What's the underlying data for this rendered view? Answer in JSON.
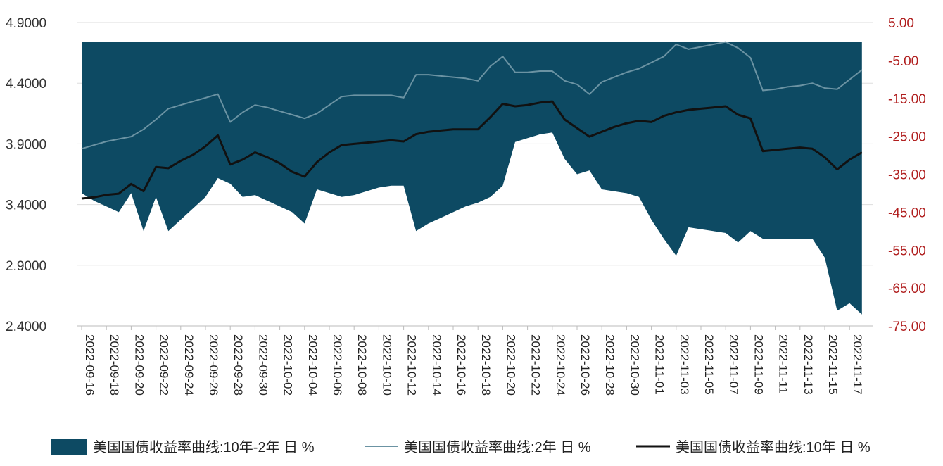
{
  "chart_data": {
    "type": "area",
    "left_axis": {
      "ylim": [
        2.4,
        4.9
      ],
      "ticks": [
        "4.9000",
        "4.4000",
        "3.9000",
        "3.4000",
        "2.9000",
        "2.4000"
      ]
    },
    "right_axis": {
      "ylim": [
        -75,
        5
      ],
      "ticks": [
        "5.00",
        "-5.00",
        "-15.00",
        "-25.00",
        "-35.00",
        "-45.00",
        "-55.00",
        "-65.00",
        "-75.00"
      ],
      "tick_color": "#b01e1e"
    },
    "x_ticks": [
      "2022-09-16",
      "2022-09-18",
      "2022-09-20",
      "2022-09-22",
      "2022-09-24",
      "2022-09-26",
      "2022-09-28",
      "2022-09-30",
      "2022-10-02",
      "2022-10-04",
      "2022-10-06",
      "2022-10-08",
      "2022-10-10",
      "2022-10-12",
      "2022-10-14",
      "2022-10-16",
      "2022-10-18",
      "2022-10-20",
      "2022-10-22",
      "2022-10-24",
      "2022-10-26",
      "2022-10-28",
      "2022-10-30",
      "2022-11-01",
      "2022-11-03",
      "2022-11-05",
      "2022-11-07",
      "2022-11-09",
      "2022-11-11",
      "2022-11-13",
      "2022-11-15",
      "2022-11-17"
    ],
    "x_start": "2022-09-16",
    "series": [
      {
        "name": "美国国债收益率曲线:10年-2年 日 %",
        "kind": "area",
        "axis": "right",
        "color": "#0d4a63",
        "top": 0,
        "points": [
          [
            "2022-09-16",
            -40.0
          ],
          [
            "2022-09-17",
            -42.0
          ],
          [
            "2022-09-18",
            -43.5
          ],
          [
            "2022-09-19",
            -45.0
          ],
          [
            "2022-09-20",
            -40.0
          ],
          [
            "2022-09-21",
            -50.0
          ],
          [
            "2022-09-22",
            -41.0
          ],
          [
            "2022-09-23",
            -50.0
          ],
          [
            "2022-09-24",
            -47.0
          ],
          [
            "2022-09-25",
            -44.0
          ],
          [
            "2022-09-26",
            -41.0
          ],
          [
            "2022-09-27",
            -36.0
          ],
          [
            "2022-09-28",
            -37.5
          ],
          [
            "2022-09-29",
            -41.0
          ],
          [
            "2022-09-30",
            -40.5
          ],
          [
            "2022-10-01",
            -42.0
          ],
          [
            "2022-10-02",
            -43.5
          ],
          [
            "2022-10-03",
            -45.0
          ],
          [
            "2022-10-04",
            -48.0
          ],
          [
            "2022-10-05",
            -39.0
          ],
          [
            "2022-10-06",
            -40.0
          ],
          [
            "2022-10-07",
            -41.0
          ],
          [
            "2022-10-08",
            -40.5
          ],
          [
            "2022-10-09",
            -39.5
          ],
          [
            "2022-10-10",
            -38.5
          ],
          [
            "2022-10-11",
            -38.0
          ],
          [
            "2022-10-12",
            -38.0
          ],
          [
            "2022-10-13",
            -50.0
          ],
          [
            "2022-10-14",
            -48.0
          ],
          [
            "2022-10-15",
            -46.5
          ],
          [
            "2022-10-16",
            -45.0
          ],
          [
            "2022-10-17",
            -43.5
          ],
          [
            "2022-10-18",
            -42.5
          ],
          [
            "2022-10-19",
            -41.0
          ],
          [
            "2022-10-20",
            -38.0
          ],
          [
            "2022-10-21",
            -26.5
          ],
          [
            "2022-10-22",
            -25.5
          ],
          [
            "2022-10-23",
            -24.5
          ],
          [
            "2022-10-24",
            -24.0
          ],
          [
            "2022-10-25",
            -31.0
          ],
          [
            "2022-10-26",
            -35.0
          ],
          [
            "2022-10-27",
            -34.0
          ],
          [
            "2022-10-28",
            -39.0
          ],
          [
            "2022-10-29",
            -39.5
          ],
          [
            "2022-10-30",
            -40.0
          ],
          [
            "2022-10-31",
            -41.0
          ],
          [
            "2022-11-01",
            -47.0
          ],
          [
            "2022-11-02",
            -52.0
          ],
          [
            "2022-11-03",
            -56.5
          ],
          [
            "2022-11-04",
            -49.0
          ],
          [
            "2022-11-05",
            -49.5
          ],
          [
            "2022-11-06",
            -50.0
          ],
          [
            "2022-11-07",
            -50.5
          ],
          [
            "2022-11-08",
            -53.0
          ],
          [
            "2022-11-09",
            -50.0
          ],
          [
            "2022-11-10",
            -52.0
          ],
          [
            "2022-11-11",
            -52.0
          ],
          [
            "2022-11-12",
            -52.0
          ],
          [
            "2022-11-13",
            -52.0
          ],
          [
            "2022-11-14",
            -52.0
          ],
          [
            "2022-11-15",
            -57.0
          ],
          [
            "2022-11-16",
            -71.0
          ],
          [
            "2022-11-17",
            -69.0
          ],
          [
            "2022-11-18",
            -72.0
          ]
        ]
      },
      {
        "name": "美国国债收益率曲线:2年 日 %",
        "kind": "line",
        "axis": "left",
        "color": "#6b93a3",
        "points": [
          [
            "2022-09-16",
            3.86
          ],
          [
            "2022-09-17",
            3.89
          ],
          [
            "2022-09-18",
            3.92
          ],
          [
            "2022-09-19",
            3.94
          ],
          [
            "2022-09-20",
            3.96
          ],
          [
            "2022-09-21",
            4.02
          ],
          [
            "2022-09-22",
            4.1
          ],
          [
            "2022-09-23",
            4.19
          ],
          [
            "2022-09-24",
            4.22
          ],
          [
            "2022-09-25",
            4.25
          ],
          [
            "2022-09-26",
            4.28
          ],
          [
            "2022-09-27",
            4.31
          ],
          [
            "2022-09-28",
            4.08
          ],
          [
            "2022-09-29",
            4.16
          ],
          [
            "2022-09-30",
            4.22
          ],
          [
            "2022-10-01",
            4.2
          ],
          [
            "2022-10-02",
            4.17
          ],
          [
            "2022-10-03",
            4.14
          ],
          [
            "2022-10-04",
            4.11
          ],
          [
            "2022-10-05",
            4.15
          ],
          [
            "2022-10-06",
            4.22
          ],
          [
            "2022-10-07",
            4.29
          ],
          [
            "2022-10-08",
            4.3
          ],
          [
            "2022-10-09",
            4.3
          ],
          [
            "2022-10-10",
            4.3
          ],
          [
            "2022-10-11",
            4.3
          ],
          [
            "2022-10-12",
            4.28
          ],
          [
            "2022-10-13",
            4.47
          ],
          [
            "2022-10-14",
            4.47
          ],
          [
            "2022-10-15",
            4.46
          ],
          [
            "2022-10-16",
            4.45
          ],
          [
            "2022-10-17",
            4.44
          ],
          [
            "2022-10-18",
            4.42
          ],
          [
            "2022-10-19",
            4.54
          ],
          [
            "2022-10-20",
            4.62
          ],
          [
            "2022-10-21",
            4.49
          ],
          [
            "2022-10-22",
            4.49
          ],
          [
            "2022-10-23",
            4.5
          ],
          [
            "2022-10-24",
            4.5
          ],
          [
            "2022-10-25",
            4.42
          ],
          [
            "2022-10-26",
            4.39
          ],
          [
            "2022-10-27",
            4.31
          ],
          [
            "2022-10-28",
            4.41
          ],
          [
            "2022-10-29",
            4.45
          ],
          [
            "2022-10-30",
            4.49
          ],
          [
            "2022-10-31",
            4.52
          ],
          [
            "2022-11-01",
            4.57
          ],
          [
            "2022-11-02",
            4.62
          ],
          [
            "2022-11-03",
            4.72
          ],
          [
            "2022-11-04",
            4.68
          ],
          [
            "2022-11-05",
            4.7
          ],
          [
            "2022-11-06",
            4.72
          ],
          [
            "2022-11-07",
            4.74
          ],
          [
            "2022-11-08",
            4.69
          ],
          [
            "2022-11-09",
            4.61
          ],
          [
            "2022-11-10",
            4.34
          ],
          [
            "2022-11-11",
            4.35
          ],
          [
            "2022-11-12",
            4.37
          ],
          [
            "2022-11-13",
            4.38
          ],
          [
            "2022-11-14",
            4.4
          ],
          [
            "2022-11-15",
            4.36
          ],
          [
            "2022-11-16",
            4.35
          ],
          [
            "2022-11-17",
            4.43
          ],
          [
            "2022-11-18",
            4.51
          ]
        ]
      },
      {
        "name": "美国国债收益率曲线:10年 日 %",
        "kind": "line",
        "axis": "left",
        "color": "#111111",
        "points": [
          [
            "2022-09-16",
            3.45
          ],
          [
            "2022-09-17",
            3.46
          ],
          [
            "2022-09-18",
            3.48
          ],
          [
            "2022-09-19",
            3.49
          ],
          [
            "2022-09-20",
            3.57
          ],
          [
            "2022-09-21",
            3.51
          ],
          [
            "2022-09-22",
            3.71
          ],
          [
            "2022-09-23",
            3.7
          ],
          [
            "2022-09-24",
            3.76
          ],
          [
            "2022-09-25",
            3.81
          ],
          [
            "2022-09-26",
            3.88
          ],
          [
            "2022-09-27",
            3.97
          ],
          [
            "2022-09-28",
            3.73
          ],
          [
            "2022-09-29",
            3.77
          ],
          [
            "2022-09-30",
            3.83
          ],
          [
            "2022-10-01",
            3.79
          ],
          [
            "2022-10-02",
            3.74
          ],
          [
            "2022-10-03",
            3.67
          ],
          [
            "2022-10-04",
            3.63
          ],
          [
            "2022-10-05",
            3.75
          ],
          [
            "2022-10-06",
            3.83
          ],
          [
            "2022-10-07",
            3.89
          ],
          [
            "2022-10-08",
            3.9
          ],
          [
            "2022-10-09",
            3.91
          ],
          [
            "2022-10-10",
            3.92
          ],
          [
            "2022-10-11",
            3.93
          ],
          [
            "2022-10-12",
            3.92
          ],
          [
            "2022-10-13",
            3.98
          ],
          [
            "2022-10-14",
            4.0
          ],
          [
            "2022-10-15",
            4.01
          ],
          [
            "2022-10-16",
            4.02
          ],
          [
            "2022-10-17",
            4.02
          ],
          [
            "2022-10-18",
            4.02
          ],
          [
            "2022-10-19",
            4.12
          ],
          [
            "2022-10-20",
            4.23
          ],
          [
            "2022-10-21",
            4.21
          ],
          [
            "2022-10-22",
            4.22
          ],
          [
            "2022-10-23",
            4.24
          ],
          [
            "2022-10-24",
            4.25
          ],
          [
            "2022-10-25",
            4.1
          ],
          [
            "2022-10-26",
            4.03
          ],
          [
            "2022-10-27",
            3.96
          ],
          [
            "2022-10-28",
            4.0
          ],
          [
            "2022-10-29",
            4.04
          ],
          [
            "2022-10-30",
            4.07
          ],
          [
            "2022-10-31",
            4.09
          ],
          [
            "2022-11-01",
            4.08
          ],
          [
            "2022-11-02",
            4.13
          ],
          [
            "2022-11-03",
            4.16
          ],
          [
            "2022-11-04",
            4.18
          ],
          [
            "2022-11-05",
            4.19
          ],
          [
            "2022-11-06",
            4.2
          ],
          [
            "2022-11-07",
            4.21
          ],
          [
            "2022-11-08",
            4.14
          ],
          [
            "2022-11-09",
            4.11
          ],
          [
            "2022-11-10",
            3.84
          ],
          [
            "2022-11-11",
            3.85
          ],
          [
            "2022-11-12",
            3.86
          ],
          [
            "2022-11-13",
            3.87
          ],
          [
            "2022-11-14",
            3.86
          ],
          [
            "2022-11-15",
            3.79
          ],
          [
            "2022-11-16",
            3.69
          ],
          [
            "2022-11-17",
            3.77
          ],
          [
            "2022-11-18",
            3.83
          ]
        ]
      }
    ],
    "legend": {
      "placement": "bottom",
      "labels": [
        "美国国债收益率曲线:10年-2年 日 %",
        "美国国债收益率曲线:2年 日 %",
        "美国国债收益率曲线:10年 日 %"
      ]
    },
    "grid": {
      "horizontal": true,
      "vertical": false
    }
  }
}
